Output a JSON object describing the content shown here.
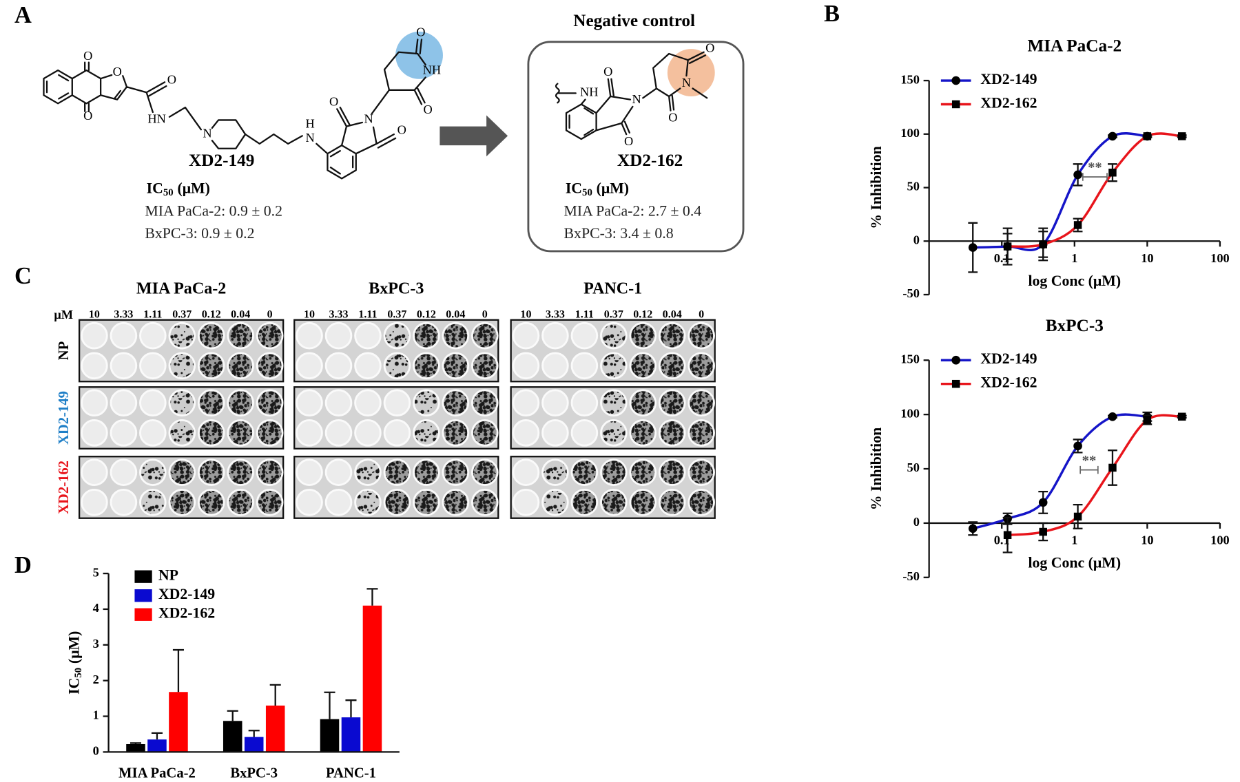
{
  "panel_labels": [
    "A",
    "B",
    "C",
    "D"
  ],
  "panel_a": {
    "compound_1": {
      "name": "XD2-149",
      "atoms": [
        "O",
        "O",
        "O",
        "O",
        "HN",
        "N",
        "H",
        "N",
        "O",
        "N",
        "O",
        "O",
        "NH",
        "O"
      ],
      "ic50_label": {
        "main": "IC",
        "sub": "50",
        "unit": "(μM)"
      },
      "lines": [
        "MIA PaCa-2: 0.9 ± 0.2",
        "BxPC-3: 0.9 ± 0.2"
      ]
    },
    "negative_control_title": "Negative control",
    "compound_2": {
      "name": "XD2-162",
      "atoms": [
        "NH",
        "O",
        "N",
        "O",
        "O",
        "N",
        "O"
      ],
      "ic50_label": {
        "main": "IC",
        "sub": "50",
        "unit": "(μM)"
      },
      "lines": [
        "MIA PaCa-2: 2.7 ± 0.4",
        "BxPC-3: 3.4 ± 0.8"
      ]
    }
  },
  "panel_c": {
    "cell_lines": [
      "MIA PaCa-2",
      "BxPC-3",
      "PANC-1"
    ],
    "unit": "μM",
    "concentrations": [
      "10",
      "3.33",
      "1.11",
      "0.37",
      "0.12",
      "0.04",
      "0"
    ],
    "treatments": [
      {
        "name": "NP",
        "color": "#000000"
      },
      {
        "name": "XD2-149",
        "color": "#1f7fc7"
      },
      {
        "name": "XD2-162",
        "color": "#e8141b"
      }
    ]
  },
  "chart_data": [
    {
      "type": "line",
      "title": "MIA PaCa-2",
      "xlabel": "log Conc (μM)",
      "ylabel": "% Inhibition",
      "xscale": "log",
      "xlim": [
        0.01,
        100
      ],
      "xticks": [
        0.1,
        1,
        10,
        100
      ],
      "ylim": [
        -50,
        150
      ],
      "yticks": [
        -50,
        0,
        50,
        100,
        150
      ],
      "legend": "upper left",
      "series": [
        {
          "name": "XD2-149",
          "color": "#1515c8",
          "marker": "circle",
          "marker_color": "#000000",
          "x": [
            0.04,
            0.12,
            0.37,
            1.11,
            3.33,
            10
          ],
          "values": [
            -6,
            -5,
            -3,
            62,
            98,
            98
          ],
          "errors": [
            23,
            17,
            15,
            10,
            1,
            1
          ]
        },
        {
          "name": "XD2-162",
          "color": "#e8141b",
          "marker": "square",
          "marker_color": "#000000",
          "x": [
            0.12,
            0.37,
            1.11,
            3.33,
            10,
            30
          ],
          "values": [
            -5,
            -3,
            15,
            64,
            98,
            98
          ],
          "errors": [
            12,
            12,
            6,
            8,
            1,
            1
          ]
        }
      ],
      "annotation": {
        "text": "**",
        "x": [
          1.3,
          2.8
        ],
        "y": 60
      }
    },
    {
      "type": "line",
      "title": "BxPC-3",
      "xlabel": "log Conc (μM)",
      "ylabel": "% Inhibition",
      "xscale": "log",
      "xlim": [
        0.01,
        100
      ],
      "xticks": [
        0.1,
        1,
        10,
        100
      ],
      "ylim": [
        -50,
        150
      ],
      "yticks": [
        -50,
        0,
        50,
        100,
        150
      ],
      "legend": "upper left",
      "series": [
        {
          "name": "XD2-149",
          "color": "#1515c8",
          "marker": "circle",
          "marker_color": "#000000",
          "x": [
            0.04,
            0.12,
            0.37,
            1.11,
            3.33,
            10
          ],
          "values": [
            -5,
            4,
            19,
            71,
            98,
            98
          ],
          "errors": [
            6,
            5,
            10,
            6,
            1,
            4
          ]
        },
        {
          "name": "XD2-162",
          "color": "#e8141b",
          "marker": "square",
          "marker_color": "#000000",
          "x": [
            0.12,
            0.37,
            1.11,
            3.33,
            10,
            30
          ],
          "values": [
            -11,
            -8,
            6,
            51,
            95,
            98
          ],
          "errors": [
            16,
            8,
            11,
            16,
            4,
            1
          ]
        }
      ],
      "annotation": {
        "text": "**",
        "x": [
          1.2,
          2.1
        ],
        "y": 49
      }
    },
    {
      "type": "bar",
      "ylabel": {
        "main": "IC",
        "sub": "50",
        "unit": "(μM)"
      },
      "categories": [
        "MIA PaCa-2",
        "BxPC-3",
        "PANC-1"
      ],
      "ylim": [
        0,
        5
      ],
      "yticks": [
        0,
        1,
        2,
        3,
        4,
        5
      ],
      "legend": "upper left",
      "series": [
        {
          "name": "NP",
          "color": "#000000",
          "values": [
            0.22,
            0.87,
            0.92
          ],
          "errors": [
            0.03,
            0.28,
            0.75
          ]
        },
        {
          "name": "XD2-149",
          "color": "#0a0ad0",
          "values": [
            0.35,
            0.42,
            0.97
          ],
          "errors": [
            0.18,
            0.18,
            0.48
          ]
        },
        {
          "name": "XD2-162",
          "color": "#ff0000",
          "values": [
            1.68,
            1.3,
            4.1
          ],
          "errors": [
            1.18,
            0.58,
            0.47
          ]
        }
      ]
    }
  ]
}
